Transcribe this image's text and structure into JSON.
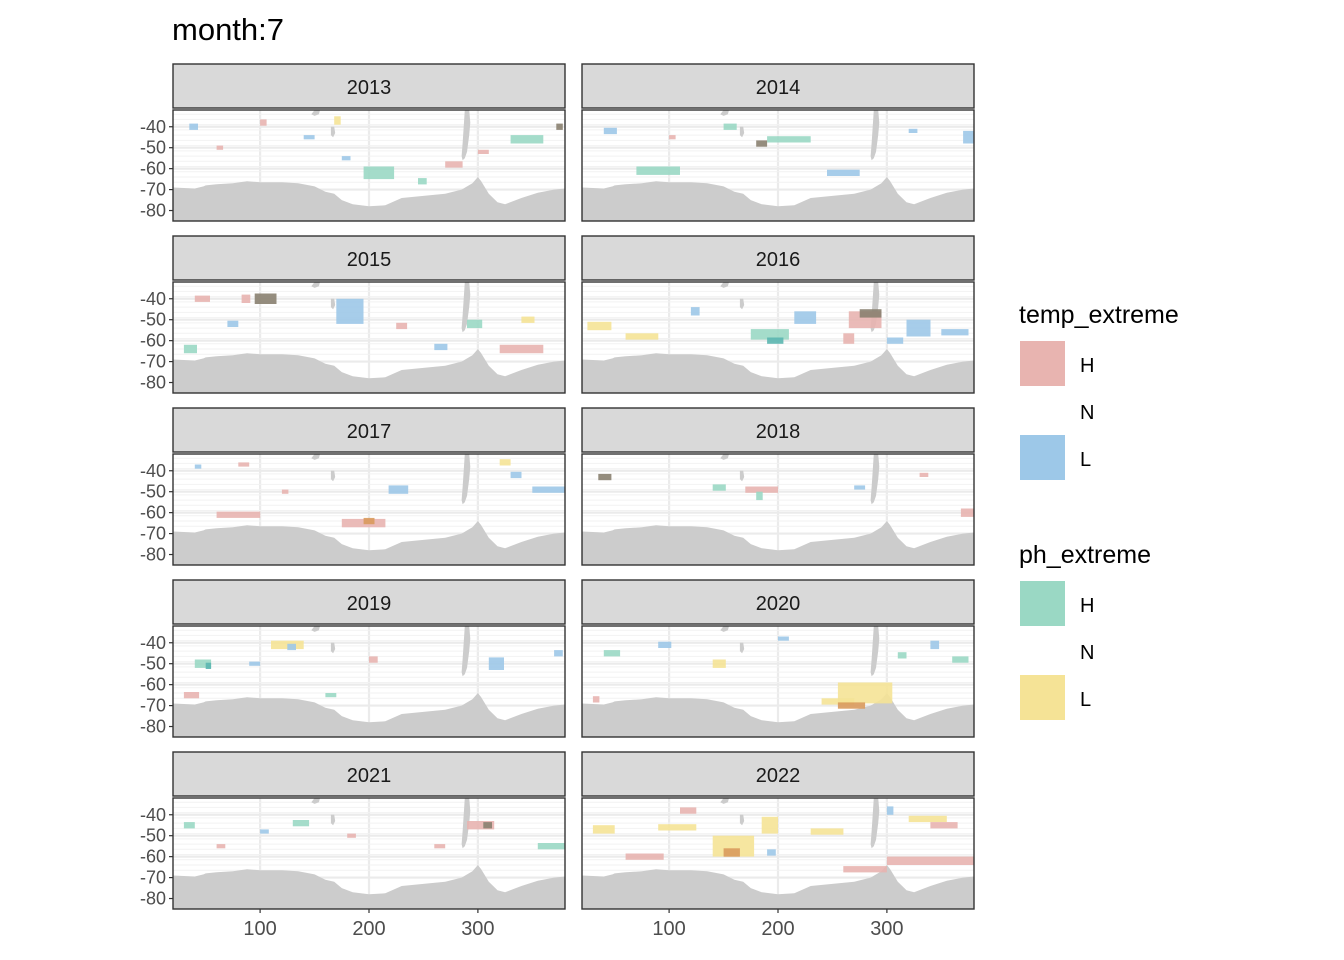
{
  "chart_data": {
    "type": "heatmap",
    "title": "month:7",
    "xlabel": "",
    "ylabel": "",
    "x_ticks": [
      100,
      200,
      300
    ],
    "y_ticks": [
      -40,
      -50,
      -60,
      -70,
      -80
    ],
    "xlim": [
      20,
      380
    ],
    "ylim": [
      -85,
      -32
    ],
    "grid": true,
    "legend_position": "right",
    "colors": {
      "temp_H": "#e8b4b0",
      "temp_L": "#9dc8e8",
      "ph_H": "#9ad8c4",
      "ph_L": "#f5e396",
      "mix_orange": "#d99a5c",
      "mix_dark": "#8a8170",
      "mix_teal": "#5bb6b0",
      "land": "#cccccc",
      "strip": "#d9d9d9",
      "gridline": "#ebebeb"
    },
    "legends": [
      {
        "title": "temp_extreme",
        "entries": [
          {
            "label": "H",
            "color": "#e8b4b0"
          },
          {
            "label": "N",
            "color": null
          },
          {
            "label": "L",
            "color": "#9dc8e8"
          }
        ]
      },
      {
        "title": "ph_extreme",
        "entries": [
          {
            "label": "H",
            "color": "#9ad8c4"
          },
          {
            "label": "N",
            "color": null
          },
          {
            "label": "L",
            "color": "#f5e396"
          }
        ]
      }
    ],
    "panels": [
      {
        "year": "2013",
        "patches": [
          {
            "x": 270,
            "y": -58,
            "w": 16,
            "h": 3,
            "c": "temp_H"
          },
          {
            "x": 195,
            "y": -62,
            "w": 28,
            "h": 6,
            "c": "ph_H"
          },
          {
            "x": 330,
            "y": -46,
            "w": 30,
            "h": 4,
            "c": "ph_H"
          },
          {
            "x": 35,
            "y": -40,
            "w": 8,
            "h": 3,
            "c": "temp_L"
          },
          {
            "x": 100,
            "y": -38,
            "w": 6,
            "h": 3,
            "c": "temp_H"
          },
          {
            "x": 168,
            "y": -37,
            "w": 6,
            "h": 4,
            "c": "ph_L"
          },
          {
            "x": 372,
            "y": -40,
            "w": 6,
            "h": 3,
            "c": "mix_dark"
          },
          {
            "x": 245,
            "y": -66,
            "w": 8,
            "h": 3,
            "c": "ph_H"
          },
          {
            "x": 140,
            "y": -45,
            "w": 10,
            "h": 2,
            "c": "temp_L"
          },
          {
            "x": 300,
            "y": -52,
            "w": 10,
            "h": 2,
            "c": "temp_H"
          },
          {
            "x": 175,
            "y": -55,
            "w": 8,
            "h": 2,
            "c": "temp_L"
          },
          {
            "x": 60,
            "y": -50,
            "w": 6,
            "h": 2,
            "c": "temp_H"
          }
        ]
      },
      {
        "year": "2014",
        "patches": [
          {
            "x": 190,
            "y": -46,
            "w": 40,
            "h": 3,
            "c": "ph_H"
          },
          {
            "x": 70,
            "y": -61,
            "w": 40,
            "h": 4,
            "c": "ph_H"
          },
          {
            "x": 245,
            "y": -62,
            "w": 30,
            "h": 3,
            "c": "temp_L"
          },
          {
            "x": 370,
            "y": -45,
            "w": 10,
            "h": 6,
            "c": "temp_L"
          },
          {
            "x": 40,
            "y": -42,
            "w": 12,
            "h": 3,
            "c": "temp_L"
          },
          {
            "x": 150,
            "y": -40,
            "w": 12,
            "h": 3,
            "c": "ph_H"
          },
          {
            "x": 180,
            "y": -48,
            "w": 10,
            "h": 3,
            "c": "mix_dark"
          },
          {
            "x": 100,
            "y": -45,
            "w": 6,
            "h": 2,
            "c": "temp_H"
          },
          {
            "x": 320,
            "y": -42,
            "w": 8,
            "h": 2,
            "c": "temp_L"
          }
        ]
      },
      {
        "year": "2015",
        "patches": [
          {
            "x": 95,
            "y": -40,
            "w": 20,
            "h": 5,
            "c": "mix_dark"
          },
          {
            "x": 83,
            "y": -40,
            "w": 8,
            "h": 4,
            "c": "temp_H"
          },
          {
            "x": 170,
            "y": -46,
            "w": 25,
            "h": 12,
            "c": "temp_L"
          },
          {
            "x": 320,
            "y": -64,
            "w": 40,
            "h": 4,
            "c": "temp_H"
          },
          {
            "x": 30,
            "y": -64,
            "w": 12,
            "h": 4,
            "c": "ph_H"
          },
          {
            "x": 340,
            "y": -50,
            "w": 12,
            "h": 3,
            "c": "ph_L"
          },
          {
            "x": 225,
            "y": -53,
            "w": 10,
            "h": 3,
            "c": "temp_H"
          },
          {
            "x": 290,
            "y": -52,
            "w": 14,
            "h": 4,
            "c": "ph_H"
          },
          {
            "x": 40,
            "y": -40,
            "w": 14,
            "h": 3,
            "c": "temp_H"
          },
          {
            "x": 70,
            "y": -52,
            "w": 10,
            "h": 3,
            "c": "temp_L"
          },
          {
            "x": 260,
            "y": -63,
            "w": 12,
            "h": 3,
            "c": "temp_L"
          }
        ]
      },
      {
        "year": "2016",
        "patches": [
          {
            "x": 265,
            "y": -50,
            "w": 30,
            "h": 8,
            "c": "temp_H"
          },
          {
            "x": 275,
            "y": -47,
            "w": 20,
            "h": 4,
            "c": "mix_dark"
          },
          {
            "x": 318,
            "y": -54,
            "w": 22,
            "h": 8,
            "c": "temp_L"
          },
          {
            "x": 350,
            "y": -56,
            "w": 25,
            "h": 3,
            "c": "temp_L"
          },
          {
            "x": 175,
            "y": -57,
            "w": 35,
            "h": 5,
            "c": "ph_H"
          },
          {
            "x": 215,
            "y": -49,
            "w": 20,
            "h": 6,
            "c": "temp_L"
          },
          {
            "x": 25,
            "y": -53,
            "w": 22,
            "h": 4,
            "c": "ph_L"
          },
          {
            "x": 60,
            "y": -58,
            "w": 30,
            "h": 3,
            "c": "ph_L"
          },
          {
            "x": 260,
            "y": -59,
            "w": 10,
            "h": 5,
            "c": "temp_H"
          },
          {
            "x": 300,
            "y": -60,
            "w": 15,
            "h": 3,
            "c": "temp_L"
          },
          {
            "x": 120,
            "y": -46,
            "w": 8,
            "h": 4,
            "c": "temp_L"
          },
          {
            "x": 190,
            "y": -60,
            "w": 15,
            "h": 3,
            "c": "mix_teal"
          }
        ]
      },
      {
        "year": "2017",
        "patches": [
          {
            "x": 175,
            "y": -65,
            "w": 40,
            "h": 4,
            "c": "temp_H"
          },
          {
            "x": 195,
            "y": -64,
            "w": 10,
            "h": 3,
            "c": "mix_orange"
          },
          {
            "x": 60,
            "y": -61,
            "w": 40,
            "h": 3,
            "c": "temp_H"
          },
          {
            "x": 218,
            "y": -49,
            "w": 18,
            "h": 4,
            "c": "temp_L"
          },
          {
            "x": 350,
            "y": -49,
            "w": 30,
            "h": 3,
            "c": "temp_L"
          },
          {
            "x": 320,
            "y": -36,
            "w": 10,
            "h": 3,
            "c": "ph_L"
          },
          {
            "x": 330,
            "y": -42,
            "w": 10,
            "h": 3,
            "c": "temp_L"
          },
          {
            "x": 80,
            "y": -37,
            "w": 10,
            "h": 2,
            "c": "temp_H"
          },
          {
            "x": 120,
            "y": -50,
            "w": 6,
            "h": 2,
            "c": "temp_H"
          },
          {
            "x": 40,
            "y": -38,
            "w": 6,
            "h": 2,
            "c": "temp_L"
          }
        ]
      },
      {
        "year": "2018",
        "patches": [
          {
            "x": 170,
            "y": -49,
            "w": 30,
            "h": 3,
            "c": "temp_H"
          },
          {
            "x": 368,
            "y": -60,
            "w": 12,
            "h": 4,
            "c": "temp_H"
          },
          {
            "x": 35,
            "y": -43,
            "w": 12,
            "h": 3,
            "c": "mix_dark"
          },
          {
            "x": 140,
            "y": -48,
            "w": 12,
            "h": 3,
            "c": "ph_H"
          },
          {
            "x": 180,
            "y": -52,
            "w": 6,
            "h": 4,
            "c": "ph_H"
          },
          {
            "x": 270,
            "y": -48,
            "w": 10,
            "h": 2,
            "c": "temp_L"
          },
          {
            "x": 330,
            "y": -42,
            "w": 8,
            "h": 2,
            "c": "temp_H"
          }
        ]
      },
      {
        "year": "2019",
        "patches": [
          {
            "x": 110,
            "y": -41,
            "w": 30,
            "h": 4,
            "c": "ph_L"
          },
          {
            "x": 125,
            "y": -42,
            "w": 8,
            "h": 3,
            "c": "temp_L"
          },
          {
            "x": 40,
            "y": -50,
            "w": 15,
            "h": 4,
            "c": "ph_H"
          },
          {
            "x": 50,
            "y": -51,
            "w": 5,
            "h": 3,
            "c": "mix_teal"
          },
          {
            "x": 30,
            "y": -65,
            "w": 14,
            "h": 3,
            "c": "temp_H"
          },
          {
            "x": 310,
            "y": -50,
            "w": 14,
            "h": 6,
            "c": "temp_L"
          },
          {
            "x": 90,
            "y": -50,
            "w": 10,
            "h": 2,
            "c": "temp_L"
          },
          {
            "x": 160,
            "y": -65,
            "w": 10,
            "h": 2,
            "c": "ph_H"
          },
          {
            "x": 200,
            "y": -48,
            "w": 8,
            "h": 3,
            "c": "temp_H"
          },
          {
            "x": 370,
            "y": -45,
            "w": 8,
            "h": 3,
            "c": "temp_L"
          }
        ]
      },
      {
        "year": "2020",
        "patches": [
          {
            "x": 255,
            "y": -64,
            "w": 50,
            "h": 10,
            "c": "ph_L"
          },
          {
            "x": 240,
            "y": -68,
            "w": 30,
            "h": 3,
            "c": "ph_L"
          },
          {
            "x": 255,
            "y": -70,
            "w": 25,
            "h": 3,
            "c": "mix_orange"
          },
          {
            "x": 140,
            "y": -50,
            "w": 12,
            "h": 4,
            "c": "ph_L"
          },
          {
            "x": 40,
            "y": -45,
            "w": 15,
            "h": 3,
            "c": "ph_H"
          },
          {
            "x": 30,
            "y": -67,
            "w": 6,
            "h": 3,
            "c": "temp_H"
          },
          {
            "x": 360,
            "y": -48,
            "w": 15,
            "h": 3,
            "c": "ph_H"
          },
          {
            "x": 310,
            "y": -46,
            "w": 8,
            "h": 3,
            "c": "ph_H"
          },
          {
            "x": 340,
            "y": -41,
            "w": 8,
            "h": 4,
            "c": "temp_L"
          },
          {
            "x": 90,
            "y": -41,
            "w": 12,
            "h": 3,
            "c": "temp_L"
          },
          {
            "x": 200,
            "y": -38,
            "w": 10,
            "h": 2,
            "c": "temp_L"
          }
        ]
      },
      {
        "year": "2021",
        "patches": [
          {
            "x": 355,
            "y": -55,
            "w": 25,
            "h": 3,
            "c": "ph_H"
          },
          {
            "x": 290,
            "y": -45,
            "w": 25,
            "h": 4,
            "c": "temp_H"
          },
          {
            "x": 305,
            "y": -45,
            "w": 8,
            "h": 3,
            "c": "mix_dark"
          },
          {
            "x": 130,
            "y": -44,
            "w": 15,
            "h": 3,
            "c": "ph_H"
          },
          {
            "x": 30,
            "y": -45,
            "w": 10,
            "h": 3,
            "c": "ph_H"
          },
          {
            "x": 60,
            "y": -55,
            "w": 8,
            "h": 2,
            "c": "temp_H"
          },
          {
            "x": 100,
            "y": -48,
            "w": 8,
            "h": 2,
            "c": "temp_L"
          },
          {
            "x": 260,
            "y": -55,
            "w": 10,
            "h": 2,
            "c": "temp_H"
          },
          {
            "x": 180,
            "y": -50,
            "w": 8,
            "h": 2,
            "c": "temp_H"
          }
        ]
      },
      {
        "year": "2022",
        "patches": [
          {
            "x": 140,
            "y": -55,
            "w": 38,
            "h": 10,
            "c": "ph_L"
          },
          {
            "x": 150,
            "y": -58,
            "w": 15,
            "h": 4,
            "c": "mix_orange"
          },
          {
            "x": 230,
            "y": -48,
            "w": 30,
            "h": 3,
            "c": "ph_L"
          },
          {
            "x": 185,
            "y": -45,
            "w": 15,
            "h": 8,
            "c": "ph_L"
          },
          {
            "x": 90,
            "y": -46,
            "w": 35,
            "h": 3,
            "c": "ph_L"
          },
          {
            "x": 30,
            "y": -47,
            "w": 20,
            "h": 4,
            "c": "ph_L"
          },
          {
            "x": 60,
            "y": -60,
            "w": 35,
            "h": 3,
            "c": "temp_H"
          },
          {
            "x": 300,
            "y": -62,
            "w": 80,
            "h": 4,
            "c": "temp_H"
          },
          {
            "x": 260,
            "y": -66,
            "w": 40,
            "h": 3,
            "c": "temp_H"
          },
          {
            "x": 320,
            "y": -42,
            "w": 35,
            "h": 3,
            "c": "ph_L"
          },
          {
            "x": 340,
            "y": -45,
            "w": 25,
            "h": 3,
            "c": "temp_H"
          },
          {
            "x": 110,
            "y": -38,
            "w": 15,
            "h": 3,
            "c": "temp_H"
          },
          {
            "x": 300,
            "y": -38,
            "w": 6,
            "h": 4,
            "c": "temp_L"
          },
          {
            "x": 190,
            "y": -58,
            "w": 8,
            "h": 3,
            "c": "temp_L"
          }
        ]
      }
    ]
  }
}
